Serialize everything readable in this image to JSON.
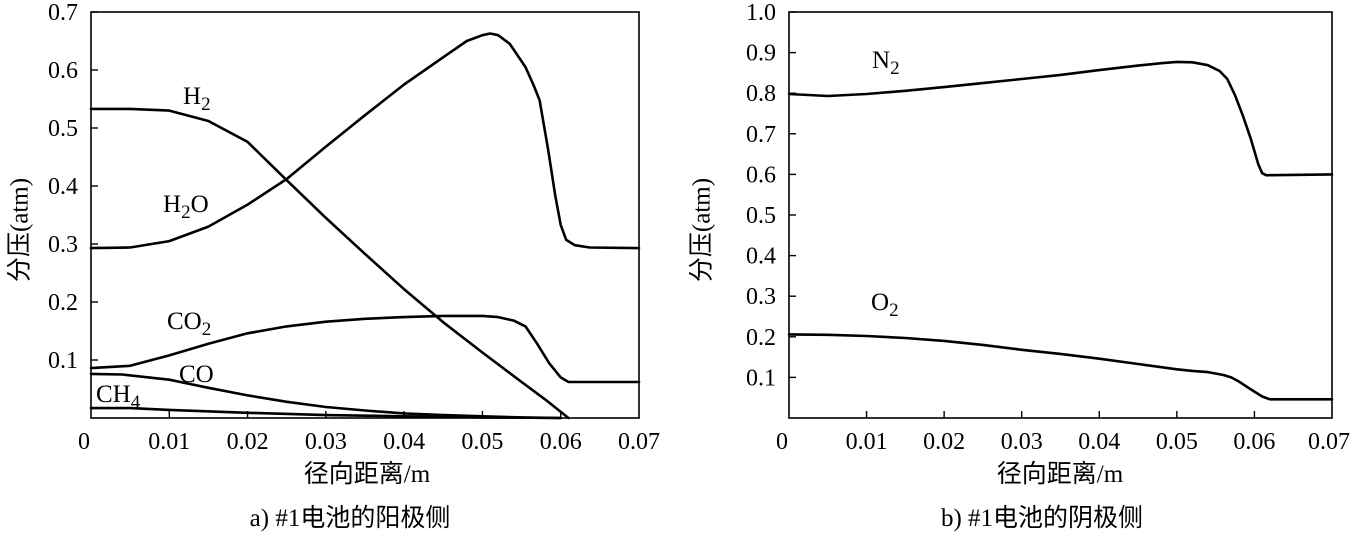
{
  "chart_data": [
    {
      "type": "line",
      "caption": "a) #1电池的阳极侧",
      "xlabel": "径向距离/m",
      "ylabel": "分压(atm)",
      "xlim": [
        0,
        0.07
      ],
      "ylim": [
        0,
        0.7
      ],
      "xticks": [
        "0",
        "0.01",
        "0.02",
        "0.03",
        "0.04",
        "0.05",
        "0.06",
        "0.07"
      ],
      "yticks": [
        "0.1",
        "0.2",
        "0.3",
        "0.4",
        "0.5",
        "0.6",
        "0.7"
      ],
      "grid": false,
      "series": [
        {
          "name": "H2",
          "x": [
            0,
            0.005,
            0.01,
            0.015,
            0.02,
            0.025,
            0.03,
            0.035,
            0.04,
            0.045,
            0.05,
            0.055,
            0.058,
            0.061
          ],
          "y": [
            0.533,
            0.533,
            0.53,
            0.512,
            0.476,
            0.41,
            0.345,
            0.283,
            0.222,
            0.165,
            0.113,
            0.062,
            0.032,
            0
          ]
        },
        {
          "name": "H2O",
          "x": [
            0,
            0.005,
            0.01,
            0.015,
            0.02,
            0.025,
            0.03,
            0.035,
            0.04,
            0.045,
            0.048,
            0.05,
            0.051,
            0.052,
            0.0535,
            0.0555,
            0.0565,
            0.0573,
            0.0584,
            0.0593,
            0.06,
            0.0607,
            0.0618,
            0.0637,
            0.07
          ],
          "y": [
            0.293,
            0.294,
            0.305,
            0.33,
            0.368,
            0.412,
            0.468,
            0.522,
            0.575,
            0.622,
            0.65,
            0.66,
            0.663,
            0.66,
            0.645,
            0.605,
            0.575,
            0.548,
            0.462,
            0.384,
            0.333,
            0.307,
            0.298,
            0.294,
            0.293
          ]
        },
        {
          "name": "CO2",
          "x": [
            0,
            0.005,
            0.01,
            0.015,
            0.02,
            0.025,
            0.03,
            0.035,
            0.04,
            0.045,
            0.05,
            0.052,
            0.054,
            0.0555,
            0.057,
            0.0585,
            0.06,
            0.061,
            0.062,
            0.07
          ],
          "y": [
            0.086,
            0.09,
            0.108,
            0.128,
            0.146,
            0.158,
            0.166,
            0.171,
            0.174,
            0.176,
            0.176,
            0.174,
            0.168,
            0.158,
            0.128,
            0.095,
            0.07,
            0.062,
            0.062,
            0.062
          ]
        },
        {
          "name": "CO",
          "x": [
            0,
            0.004,
            0.01,
            0.015,
            0.02,
            0.025,
            0.03,
            0.035,
            0.04,
            0.045,
            0.05,
            0.055,
            0.06
          ],
          "y": [
            0.076,
            0.075,
            0.066,
            0.052,
            0.039,
            0.028,
            0.019,
            0.013,
            0.008,
            0.005,
            0.003,
            0.001,
            0
          ]
        },
        {
          "name": "CH4",
          "x": [
            0,
            0.005,
            0.01,
            0.02,
            0.03,
            0.04,
            0.05,
            0.06
          ],
          "y": [
            0.017,
            0.017,
            0.014,
            0.009,
            0.005,
            0.003,
            0.001,
            0
          ]
        }
      ]
    },
    {
      "type": "line",
      "caption": "b) #1电池的阴极侧",
      "xlabel": "径向距离/m",
      "ylabel": "分压(atm)",
      "xlim": [
        0,
        0.07
      ],
      "ylim": [
        0,
        1.0
      ],
      "xticks": [
        "0",
        "0.01",
        "0.02",
        "0.03",
        "0.04",
        "0.05",
        "0.06",
        "0.07"
      ],
      "yticks": [
        "0.1",
        "0.2",
        "0.3",
        "0.4",
        "0.5",
        "0.6",
        "0.7",
        "0.8",
        "0.9",
        "1.0"
      ],
      "grid": false,
      "series": [
        {
          "name": "N2",
          "x": [
            0,
            0.005,
            0.01,
            0.015,
            0.02,
            0.025,
            0.03,
            0.035,
            0.04,
            0.045,
            0.048,
            0.05,
            0.052,
            0.054,
            0.0555,
            0.0565,
            0.0575,
            0.0585,
            0.0595,
            0.0605,
            0.061,
            0.0615,
            0.07
          ],
          "y": [
            0.798,
            0.793,
            0.798,
            0.806,
            0.815,
            0.825,
            0.835,
            0.845,
            0.857,
            0.868,
            0.874,
            0.877,
            0.876,
            0.869,
            0.855,
            0.835,
            0.795,
            0.745,
            0.69,
            0.625,
            0.603,
            0.598,
            0.6
          ]
        },
        {
          "name": "O2",
          "x": [
            0,
            0.005,
            0.01,
            0.015,
            0.02,
            0.025,
            0.03,
            0.035,
            0.04,
            0.045,
            0.05,
            0.052,
            0.054,
            0.056,
            0.057,
            0.058,
            0.059,
            0.06,
            0.061,
            0.062,
            0.07
          ],
          "y": [
            0.206,
            0.205,
            0.202,
            0.197,
            0.19,
            0.18,
            0.168,
            0.158,
            0.146,
            0.133,
            0.12,
            0.116,
            0.113,
            0.106,
            0.1,
            0.09,
            0.077,
            0.065,
            0.053,
            0.046,
            0.046
          ]
        }
      ]
    }
  ]
}
